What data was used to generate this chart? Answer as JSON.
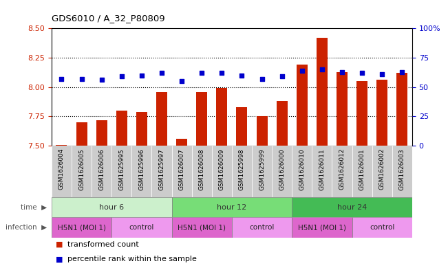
{
  "title": "GDS6010 / A_32_P80809",
  "samples": [
    "GSM1626004",
    "GSM1626005",
    "GSM1626006",
    "GSM1625995",
    "GSM1625996",
    "GSM1625997",
    "GSM1626007",
    "GSM1626008",
    "GSM1626009",
    "GSM1625998",
    "GSM1625999",
    "GSM1626000",
    "GSM1626010",
    "GSM1626011",
    "GSM1626012",
    "GSM1626001",
    "GSM1626002",
    "GSM1626003"
  ],
  "transformed_count": [
    7.51,
    7.7,
    7.72,
    7.8,
    7.79,
    7.96,
    7.56,
    7.96,
    7.99,
    7.83,
    7.75,
    7.88,
    8.19,
    8.42,
    8.13,
    8.05,
    8.06,
    8.12
  ],
  "percentile_rank": [
    57,
    57,
    56,
    59,
    60,
    62,
    55,
    62,
    62,
    60,
    57,
    59,
    64,
    65,
    63,
    62,
    61,
    63
  ],
  "ylim_left": [
    7.5,
    8.5
  ],
  "ylim_right": [
    0,
    100
  ],
  "yticks_left": [
    7.5,
    7.75,
    8.0,
    8.25,
    8.5
  ],
  "yticks_right": [
    0,
    25,
    50,
    75,
    100
  ],
  "ytick_labels_right": [
    "0",
    "25",
    "50",
    "75",
    "100%"
  ],
  "bar_color": "#cc2200",
  "dot_color": "#0000cc",
  "bar_bottom": 7.5,
  "time_groups": [
    {
      "label": "hour 6",
      "start": 0,
      "end": 6,
      "color": "#ccf0cc"
    },
    {
      "label": "hour 12",
      "start": 6,
      "end": 12,
      "color": "#77dd77"
    },
    {
      "label": "hour 24",
      "start": 12,
      "end": 18,
      "color": "#44bb55"
    }
  ],
  "infection_groups": [
    {
      "label": "H5N1 (MOI 1)",
      "start": 0,
      "end": 3,
      "color": "#dd66cc"
    },
    {
      "label": "control",
      "start": 3,
      "end": 6,
      "color": "#ee99ee"
    },
    {
      "label": "H5N1 (MOI 1)",
      "start": 6,
      "end": 9,
      "color": "#dd66cc"
    },
    {
      "label": "control",
      "start": 9,
      "end": 12,
      "color": "#ee99ee"
    },
    {
      "label": "H5N1 (MOI 1)",
      "start": 12,
      "end": 15,
      "color": "#dd66cc"
    },
    {
      "label": "control",
      "start": 15,
      "end": 18,
      "color": "#ee99ee"
    }
  ],
  "xtick_bg_color": "#cccccc",
  "grid_color": "black",
  "left_axis_color": "#cc2200",
  "right_axis_color": "#0000cc"
}
